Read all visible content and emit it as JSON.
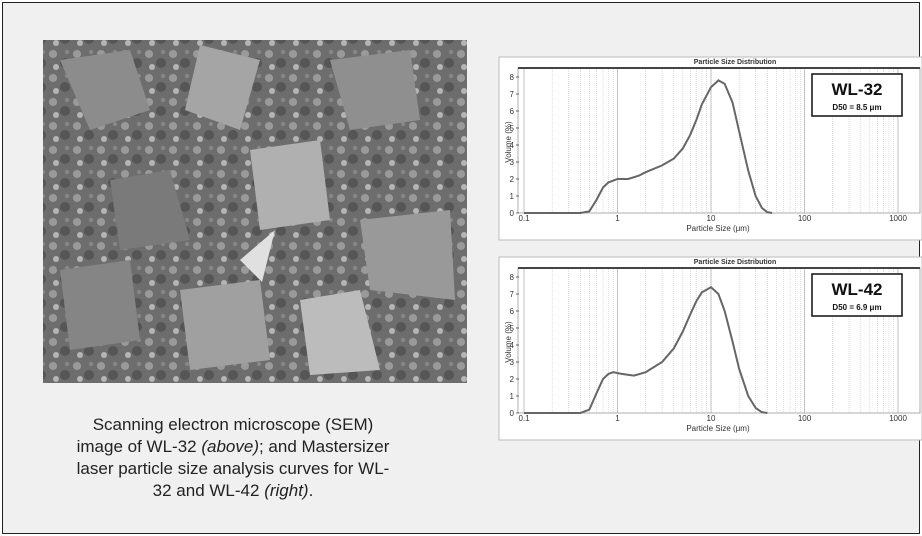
{
  "caption": [
    "Scanning electron microscope (SEM) image of WL-32 ",
    "(above)",
    "; and Mastersizer laser particle size analysis curves for WL-32 and WL-42 ",
    "(right)",
    "."
  ],
  "chart_data": [
    {
      "type": "line",
      "title": "Particle Size Distribution",
      "x_label": "Particle Size (μm)",
      "y_label": "Volume (%)",
      "annotation": {
        "title": "WL-32",
        "subtitle": "D50 = 8.5 μm"
      },
      "x": [
        0.1,
        0.4,
        0.5,
        0.6,
        0.7,
        0.8,
        1,
        1.3,
        1.7,
        2,
        3,
        4,
        5,
        6,
        7,
        8,
        10,
        12,
        14,
        17,
        20,
        25,
        30,
        35,
        40,
        45
      ],
      "series": [
        {
          "color": "#666666",
          "values": [
            0,
            0,
            0.1,
            0.8,
            1.5,
            1.8,
            2.0,
            2.0,
            2.2,
            2.4,
            2.8,
            3.2,
            3.8,
            4.6,
            5.5,
            6.4,
            7.4,
            7.8,
            7.6,
            6.5,
            4.8,
            2.5,
            1.0,
            0.3,
            0.05,
            0
          ]
        }
      ],
      "xscale": "log",
      "xlim": [
        0.1,
        1000
      ],
      "xticks": [
        0.1,
        1,
        10,
        100,
        1000
      ],
      "ylim": [
        0,
        8
      ],
      "yticks": [
        0,
        1,
        2,
        3,
        4,
        5,
        6,
        7,
        8
      ],
      "grid": true
    },
    {
      "type": "line",
      "title": "Particle Size Distribution",
      "x_label": "Particle Size (μm)",
      "y_label": "Volume (%)",
      "annotation": {
        "title": "WL-42",
        "subtitle": "D50 = 6.9 μm"
      },
      "x": [
        0.1,
        0.4,
        0.5,
        0.6,
        0.7,
        0.8,
        0.9,
        1.1,
        1.5,
        2,
        3,
        4,
        5,
        6,
        7,
        8,
        10,
        12,
        14,
        17,
        20,
        25,
        30,
        35,
        40
      ],
      "series": [
        {
          "color": "#666666",
          "values": [
            0,
            0,
            0.2,
            1.2,
            2.0,
            2.3,
            2.4,
            2.3,
            2.2,
            2.4,
            3.0,
            3.8,
            4.8,
            5.8,
            6.6,
            7.1,
            7.4,
            7.0,
            6.0,
            4.2,
            2.6,
            1.0,
            0.3,
            0.05,
            0
          ]
        }
      ],
      "xscale": "log",
      "xlim": [
        0.1,
        1000
      ],
      "xticks": [
        0.1,
        1,
        10,
        100,
        1000
      ],
      "ylim": [
        0,
        8
      ],
      "yticks": [
        0,
        1,
        2,
        3,
        4,
        5,
        6,
        7,
        8
      ],
      "grid": true
    }
  ]
}
